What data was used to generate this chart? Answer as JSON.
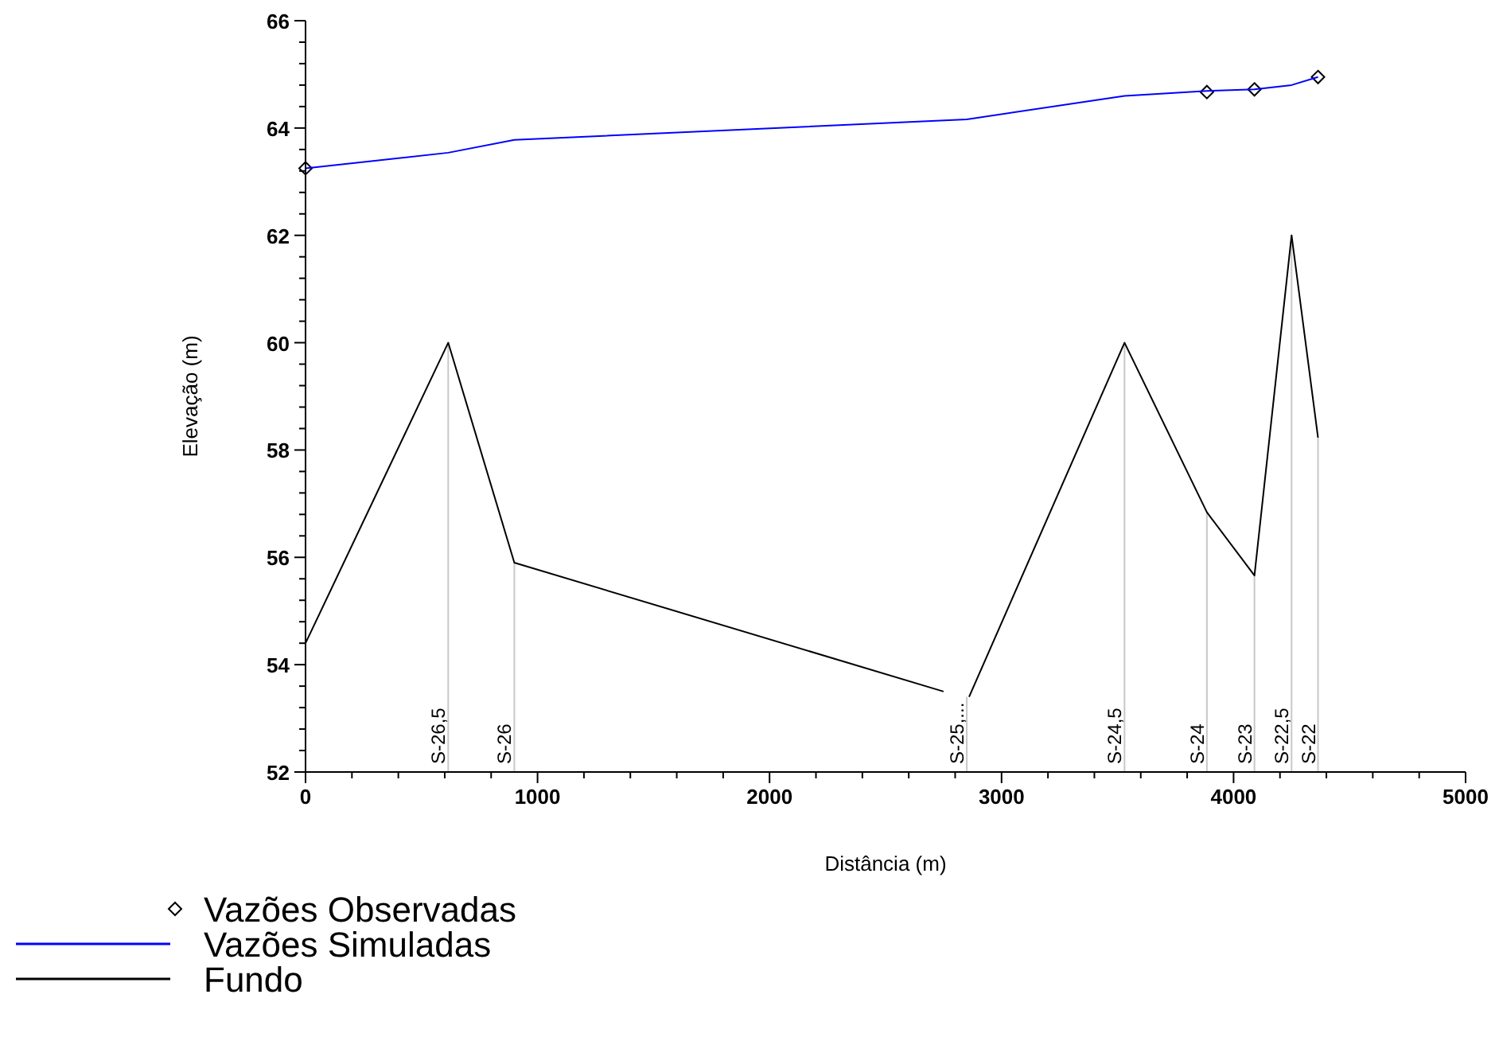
{
  "chart_data": {
    "type": "line",
    "xlabel": "Distância (m)",
    "ylabel": "Elevação (m)",
    "xlim": [
      0,
      5000
    ],
    "ylim": [
      52,
      66
    ],
    "xticks": [
      0,
      {
        "value": 200,
        "label": null
      },
      {
        "value": 400,
        "label": null
      },
      {
        "value": 600,
        "label": null
      },
      {
        "value": 800,
        "label": null
      },
      1000,
      {
        "value": 1200,
        "label": null
      },
      {
        "value": 1400,
        "label": null
      },
      {
        "value": 1600,
        "label": null
      },
      {
        "value": 1800,
        "label": null
      },
      2000,
      {
        "value": 2200,
        "label": null
      },
      {
        "value": 2400,
        "label": null
      },
      {
        "value": 2600,
        "label": null
      },
      {
        "value": 2800,
        "label": null
      },
      3000,
      {
        "value": 3200,
        "label": null
      },
      {
        "value": 3400,
        "label": null
      },
      {
        "value": 3600,
        "label": null
      },
      {
        "value": 3800,
        "label": null
      },
      4000,
      {
        "value": 4200,
        "label": null
      },
      {
        "value": 4400,
        "label": null
      },
      {
        "value": 4600,
        "label": null
      },
      {
        "value": 4800,
        "label": null
      },
      5000
    ],
    "yticks": [
      52,
      {
        "value": 52.4,
        "label": null
      },
      {
        "value": 52.8,
        "label": null
      },
      {
        "value": 53.2,
        "label": null
      },
      {
        "value": 53.6,
        "label": null
      },
      54,
      {
        "value": 54.4,
        "label": null
      },
      {
        "value": 54.8,
        "label": null
      },
      {
        "value": 55.2,
        "label": null
      },
      {
        "value": 55.6,
        "label": null
      },
      56,
      {
        "value": 56.4,
        "label": null
      },
      {
        "value": 56.8,
        "label": null
      },
      {
        "value": 57.2,
        "label": null
      },
      {
        "value": 57.6,
        "label": null
      },
      58,
      {
        "value": 58.4,
        "label": null
      },
      {
        "value": 58.8,
        "label": null
      },
      {
        "value": 59.2,
        "label": null
      },
      {
        "value": 59.6,
        "label": null
      },
      60,
      {
        "value": 60.4,
        "label": null
      },
      {
        "value": 60.8,
        "label": null
      },
      {
        "value": 61.2,
        "label": null
      },
      {
        "value": 61.6,
        "label": null
      },
      62,
      {
        "value": 62.4,
        "label": null
      },
      {
        "value": 62.8,
        "label": null
      },
      {
        "value": 63.2,
        "label": null
      },
      {
        "value": 63.6,
        "label": null
      },
      64,
      {
        "value": 64.4,
        "label": null
      },
      {
        "value": 64.8,
        "label": null
      },
      {
        "value": 65.2,
        "label": null
      },
      {
        "value": 65.6,
        "label": null
      },
      66
    ],
    "grid": false,
    "legend": "bottom left",
    "series": [
      {
        "name": "Vazões Observadas",
        "type": "scatter",
        "marker": "diamond",
        "color": "#000000",
        "x": [
          0,
          3885,
          4090,
          4364
        ],
        "values": [
          63.25,
          64.67,
          64.72,
          64.95
        ]
      },
      {
        "name": "Vazões Simuladas",
        "marker": "none",
        "color": "#0000ff",
        "x": [
          0,
          615,
          900,
          2850,
          3530,
          3885,
          4090,
          4250,
          4364
        ],
        "values": [
          63.25,
          63.54,
          63.78,
          64.16,
          64.6,
          64.69,
          64.72,
          64.8,
          64.95
        ]
      },
      {
        "name": "Fundo",
        "marker": "none",
        "color": "#000000",
        "x": [
          0,
          615,
          900,
          2750,
          2800,
          2860,
          3530,
          3885,
          4090,
          4250,
          4364
        ],
        "values": [
          54.4,
          60.0,
          55.9,
          53.5,
          null,
          53.4,
          60.0,
          56.84,
          55.66,
          62.0,
          58.23
        ]
      }
    ],
    "annotations": [
      {
        "text": "S-26,5",
        "x": 615,
        "y": 60.0
      },
      {
        "text": "S-26",
        "x": 900,
        "y": 55.9
      },
      {
        "text": "S-25,...",
        "x": 2850,
        "y": 53.4
      },
      {
        "text": "S-24,5",
        "x": 3530,
        "y": 60.0
      },
      {
        "text": "S-24",
        "x": 3885,
        "y": 56.84
      },
      {
        "text": "S-23",
        "x": 4090,
        "y": 55.66
      },
      {
        "text": "S-22,5",
        "x": 4250,
        "y": 62.0
      },
      {
        "text": "S-22",
        "x": 4364,
        "y": 58.23
      }
    ]
  }
}
